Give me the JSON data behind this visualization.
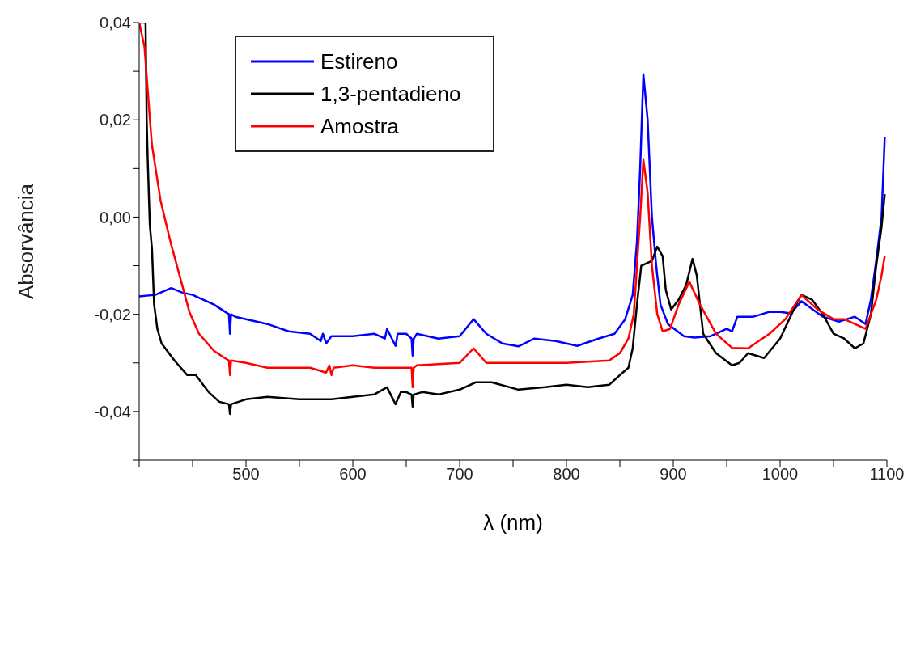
{
  "chart_data": {
    "type": "line",
    "xlabel": "λ (nm)",
    "ylabel": "Absorvância",
    "xlim": [
      400,
      1100
    ],
    "xticks": [
      {
        "value": 400,
        "label": null
      },
      {
        "value": 450,
        "label": null
      },
      500,
      {
        "value": 550,
        "label": null
      },
      600,
      {
        "value": 650,
        "label": null
      },
      700,
      {
        "value": 750,
        "label": null
      },
      800,
      {
        "value": 850,
        "label": null
      },
      900,
      {
        "value": 950,
        "label": null
      },
      1000,
      {
        "value": 1050,
        "label": null
      },
      1100
    ],
    "ylim": [
      -0.05,
      0.04
    ],
    "yticks": [
      {
        "value": -0.05,
        "label": null
      },
      {
        "value": -0.04,
        "label": "-0,04"
      },
      {
        "value": -0.03,
        "label": null
      },
      {
        "value": -0.02,
        "label": "-0,02"
      },
      {
        "value": -0.01,
        "label": null
      },
      {
        "value": 0,
        "label": "0,00"
      },
      {
        "value": 0.01,
        "label": null
      },
      {
        "value": 0.02,
        "label": "0,02"
      },
      {
        "value": 0.03,
        "label": null
      },
      {
        "value": 0.04,
        "label": "0,04"
      }
    ],
    "grid": false,
    "legend": "top left",
    "marker": "none",
    "line_style": "solid",
    "series": [
      {
        "name": "Estireno",
        "color": "#0000ff",
        "x": [
          400,
          415,
          430,
          440,
          450,
          470,
          484,
          485,
          486,
          490,
          500,
          520,
          540,
          560,
          570,
          572,
          575,
          580,
          600,
          620,
          630,
          632,
          640,
          642,
          650,
          655,
          656,
          657,
          660,
          680,
          700,
          713,
          725,
          740,
          755,
          770,
          790,
          810,
          830,
          845,
          855,
          862,
          866,
          869,
          872,
          876,
          880,
          884,
          888,
          895,
          910,
          920,
          935,
          950,
          955,
          960,
          975,
          990,
          1000,
          1010,
          1020,
          1040,
          1055,
          1070,
          1080,
          1085,
          1090,
          1095,
          1098
        ],
        "values": [
          -0.0163,
          -0.016,
          -0.0146,
          -0.0155,
          -0.016,
          -0.018,
          -0.02,
          -0.024,
          -0.02,
          -0.0205,
          -0.021,
          -0.022,
          -0.0235,
          -0.024,
          -0.0255,
          -0.024,
          -0.026,
          -0.0245,
          -0.0245,
          -0.024,
          -0.025,
          -0.023,
          -0.0265,
          -0.024,
          -0.024,
          -0.025,
          -0.0285,
          -0.025,
          -0.024,
          -0.025,
          -0.0245,
          -0.021,
          -0.024,
          -0.026,
          -0.0266,
          -0.025,
          -0.0255,
          -0.0265,
          -0.025,
          -0.024,
          -0.021,
          -0.016,
          -0.005,
          0.01,
          0.0294,
          0.02,
          0,
          -0.01,
          -0.018,
          -0.022,
          -0.0245,
          -0.0248,
          -0.0245,
          -0.023,
          -0.0235,
          -0.0205,
          -0.0205,
          -0.0195,
          -0.0195,
          -0.0198,
          -0.0173,
          -0.0205,
          -0.0215,
          -0.0205,
          -0.022,
          -0.017,
          -0.009,
          0,
          0.0165
        ]
      },
      {
        "name": "1,3-pentadieno",
        "color": "#000000",
        "x": [
          400,
          406,
          407,
          408,
          410,
          412,
          414,
          417,
          421,
          433,
          445,
          453,
          465,
          475,
          484,
          485,
          486,
          500,
          520,
          550,
          580,
          600,
          620,
          632,
          640,
          645,
          650,
          655,
          656,
          657,
          665,
          680,
          700,
          715,
          730,
          755,
          780,
          800,
          820,
          840,
          850,
          858,
          862,
          866,
          870,
          880,
          885,
          890,
          893,
          898,
          905,
          912,
          918,
          922,
          928,
          940,
          955,
          962,
          970,
          985,
          1000,
          1015,
          1020,
          1030,
          1040,
          1050,
          1060,
          1070,
          1078,
          1085,
          1090,
          1095,
          1098
        ],
        "values": [
          0.04,
          0.04,
          0.0202,
          0.0118,
          -0.0017,
          -0.0066,
          -0.018,
          -0.023,
          -0.026,
          -0.0295,
          -0.0325,
          -0.0325,
          -0.036,
          -0.038,
          -0.0385,
          -0.0405,
          -0.0385,
          -0.0375,
          -0.037,
          -0.0375,
          -0.0375,
          -0.037,
          -0.0365,
          -0.035,
          -0.0385,
          -0.036,
          -0.036,
          -0.0365,
          -0.039,
          -0.0365,
          -0.036,
          -0.0365,
          -0.0355,
          -0.034,
          -0.034,
          -0.0355,
          -0.035,
          -0.0345,
          -0.035,
          -0.0345,
          -0.0325,
          -0.031,
          -0.027,
          -0.018,
          -0.01,
          -0.009,
          -0.0061,
          -0.008,
          -0.015,
          -0.019,
          -0.017,
          -0.014,
          -0.0086,
          -0.012,
          -0.024,
          -0.028,
          -0.0305,
          -0.03,
          -0.028,
          -0.029,
          -0.025,
          -0.018,
          -0.016,
          -0.017,
          -0.02,
          -0.024,
          -0.025,
          -0.027,
          -0.026,
          -0.02,
          -0.01,
          -0.002,
          0.0047
        ]
      },
      {
        "name": "Amostra",
        "color": "#ff0000",
        "x": [
          400,
          405,
          410,
          412,
          420,
          430,
          433,
          447,
          456,
          470,
          480,
          484,
          485,
          486,
          500,
          520,
          560,
          575,
          578,
          580,
          582,
          600,
          620,
          640,
          655,
          656,
          657,
          660,
          700,
          713,
          725,
          750,
          800,
          840,
          850,
          858,
          863,
          866,
          869,
          872,
          876,
          880,
          885,
          890,
          897,
          905,
          915,
          925,
          940,
          955,
          970,
          990,
          1005,
          1020,
          1035,
          1050,
          1060,
          1070,
          1080,
          1085,
          1090,
          1095,
          1098
        ],
        "values": [
          0.04,
          0.035,
          0.0202,
          0.0148,
          0.0034,
          -0.0057,
          -0.0081,
          -0.0195,
          -0.024,
          -0.0275,
          -0.029,
          -0.0295,
          -0.0325,
          -0.0295,
          -0.03,
          -0.031,
          -0.031,
          -0.032,
          -0.0305,
          -0.0325,
          -0.031,
          -0.0305,
          -0.031,
          -0.031,
          -0.031,
          -0.035,
          -0.031,
          -0.0305,
          -0.03,
          -0.027,
          -0.03,
          -0.03,
          -0.03,
          -0.0295,
          -0.028,
          -0.025,
          -0.02,
          -0.01,
          0,
          0.0118,
          0.005,
          -0.01,
          -0.02,
          -0.0235,
          -0.023,
          -0.018,
          -0.0133,
          -0.018,
          -0.024,
          -0.0269,
          -0.027,
          -0.024,
          -0.021,
          -0.016,
          -0.019,
          -0.021,
          -0.021,
          -0.022,
          -0.023,
          -0.02,
          -0.017,
          -0.012,
          -0.008
        ]
      }
    ]
  }
}
